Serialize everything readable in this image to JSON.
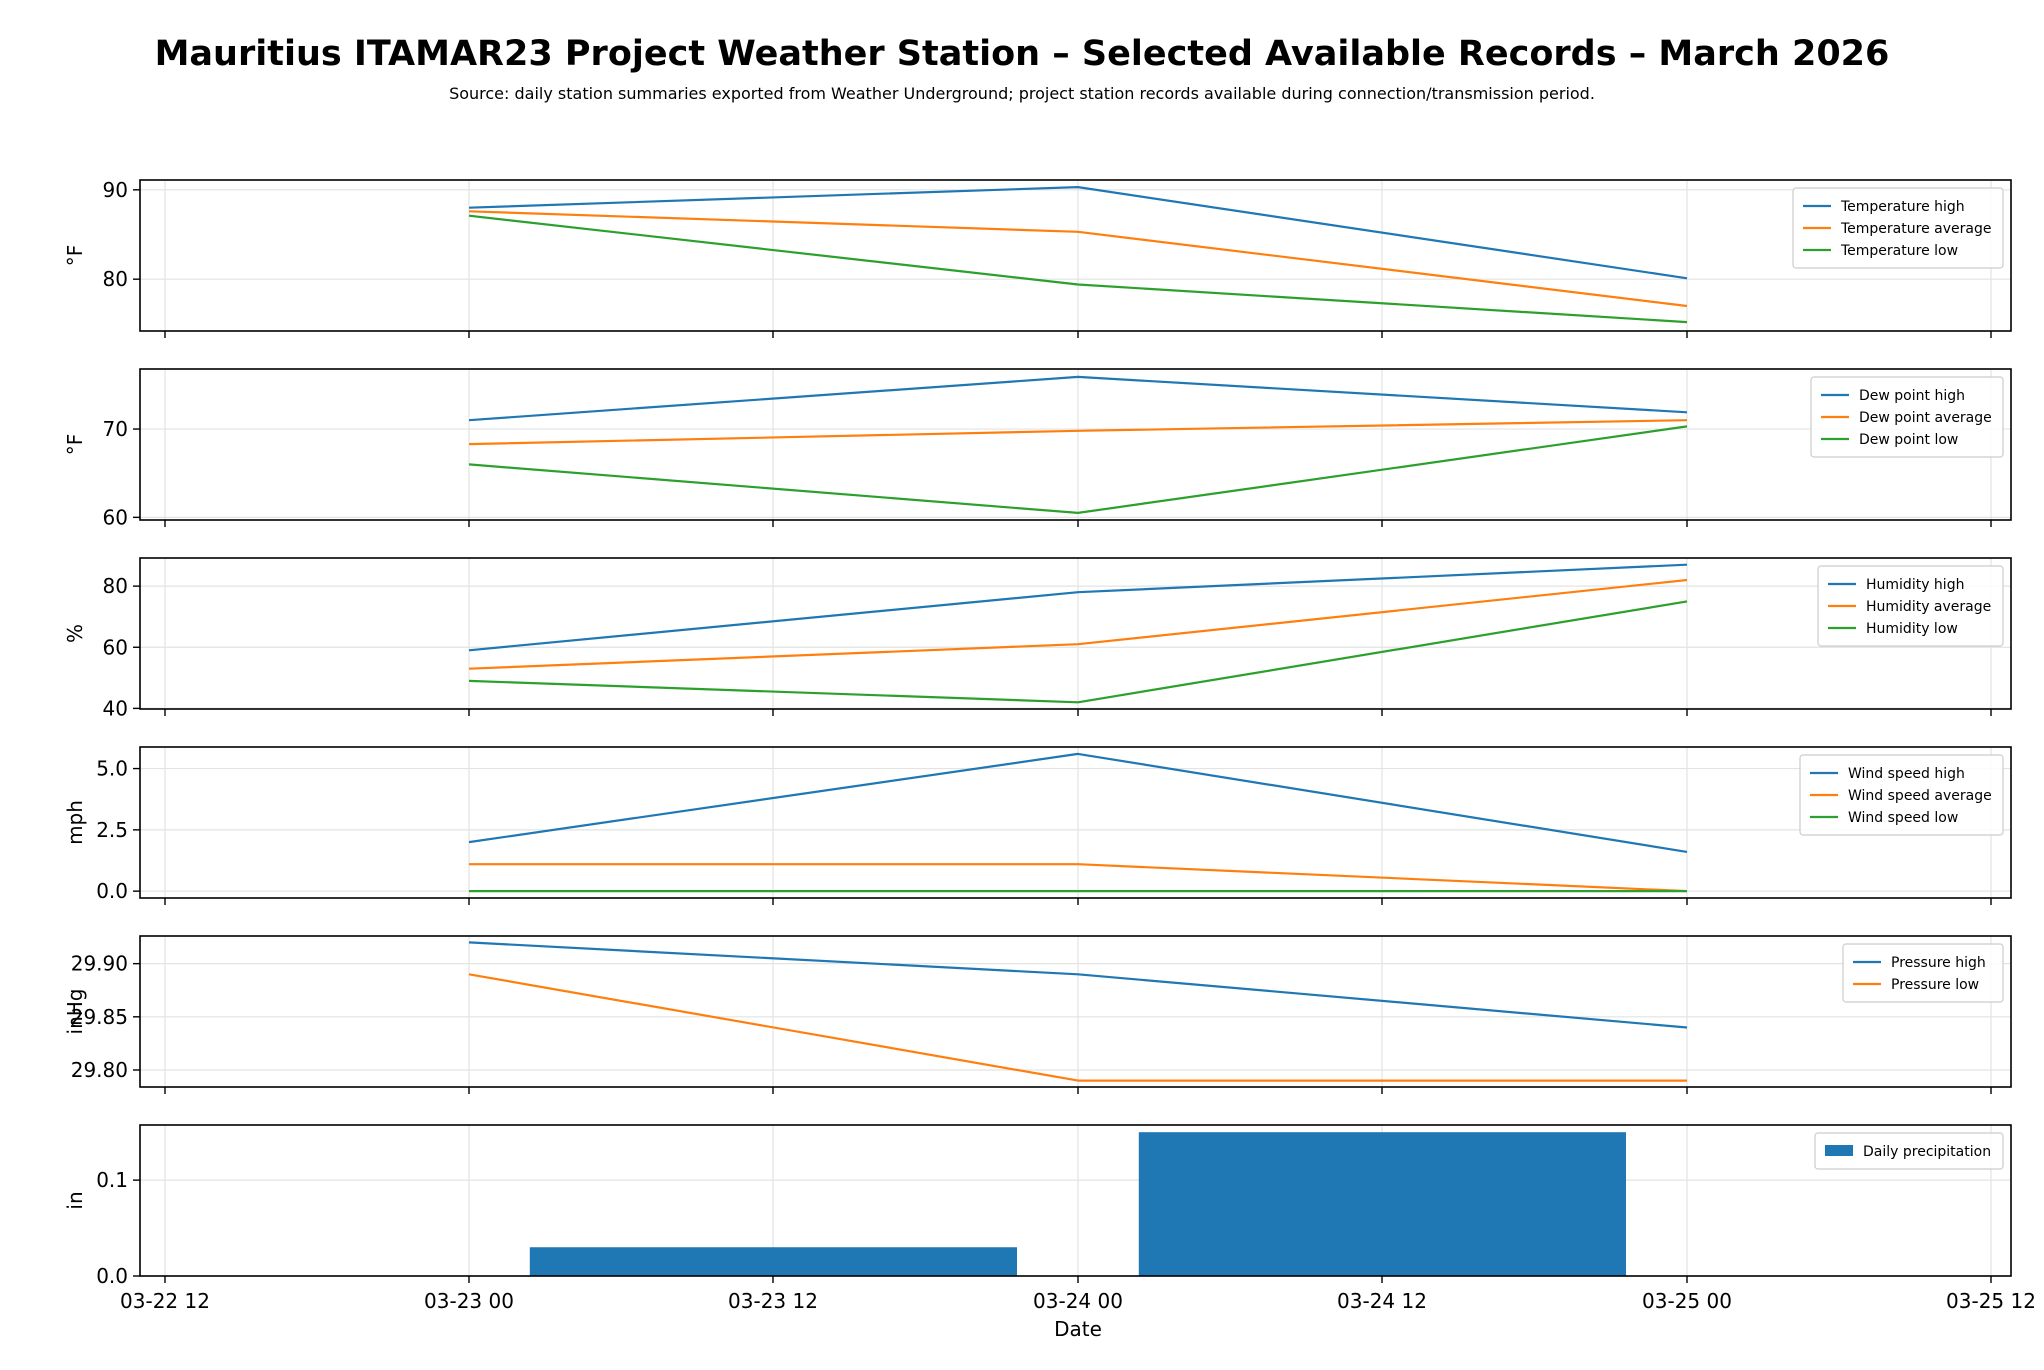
{
  "title": "Mauritius ITAMAR23 Project Weather Station – Selected Available Records – March 2026",
  "subtitle": "Source: daily station summaries exported from Weather Underground; project station records available during connection/transmission period.",
  "xlabel": "Date",
  "x_ticks": [
    "03-22 12",
    "03-23 00",
    "03-23 12",
    "03-24 00",
    "03-24 12",
    "03-25 00",
    "03-25 12"
  ],
  "colors": {
    "blue": "#1f77b4",
    "orange": "#ff7f0e",
    "green": "#2ca02c"
  },
  "chart_data": [
    {
      "type": "line",
      "ylabel": "°F",
      "x": [
        "2026-03-23",
        "2026-03-24",
        "2026-03-25"
      ],
      "xlim": [
        "2026-03-22 12:00",
        "2026-03-25 12:00"
      ],
      "ylim": [
        74.2,
        91.1
      ],
      "yticks": [
        80,
        90
      ],
      "grid": true,
      "legend": "top-right",
      "series": [
        {
          "name": "Temperature high",
          "color": "#1f77b4",
          "values": [
            88.0,
            90.3,
            80.1
          ]
        },
        {
          "name": "Temperature average",
          "color": "#ff7f0e",
          "values": [
            87.6,
            85.3,
            77.0
          ]
        },
        {
          "name": "Temperature low",
          "color": "#2ca02c",
          "values": [
            87.1,
            79.4,
            75.2
          ]
        }
      ]
    },
    {
      "type": "line",
      "ylabel": "°F",
      "x": [
        "2026-03-23",
        "2026-03-24",
        "2026-03-25"
      ],
      "xlim": [
        "2026-03-22 12:00",
        "2026-03-25 12:00"
      ],
      "ylim": [
        59.7,
        76.8
      ],
      "yticks": [
        60,
        70
      ],
      "grid": true,
      "legend": "top-right",
      "series": [
        {
          "name": "Dew point high",
          "color": "#1f77b4",
          "values": [
            71.0,
            75.9,
            71.9
          ]
        },
        {
          "name": "Dew point average",
          "color": "#ff7f0e",
          "values": [
            68.3,
            69.8,
            71.0
          ]
        },
        {
          "name": "Dew point low",
          "color": "#2ca02c",
          "values": [
            66.0,
            60.5,
            70.3
          ]
        }
      ]
    },
    {
      "type": "line",
      "ylabel": "%",
      "x": [
        "2026-03-23",
        "2026-03-24",
        "2026-03-25"
      ],
      "xlim": [
        "2026-03-22 12:00",
        "2026-03-25 12:00"
      ],
      "ylim": [
        39.8,
        89.2
      ],
      "yticks": [
        40,
        60,
        80
      ],
      "grid": true,
      "legend": "top-right",
      "series": [
        {
          "name": "Humidity high",
          "color": "#1f77b4",
          "values": [
            59,
            78,
            87
          ]
        },
        {
          "name": "Humidity average",
          "color": "#ff7f0e",
          "values": [
            53,
            61,
            82
          ]
        },
        {
          "name": "Humidity low",
          "color": "#2ca02c",
          "values": [
            49,
            42,
            75
          ]
        }
      ]
    },
    {
      "type": "line",
      "ylabel": "mph",
      "x": [
        "2026-03-23",
        "2026-03-24",
        "2026-03-25"
      ],
      "xlim": [
        "2026-03-22 12:00",
        "2026-03-25 12:00"
      ],
      "ylim": [
        -0.28,
        5.88
      ],
      "yticks": [
        0.0,
        2.5,
        5.0
      ],
      "yticklabels": [
        "0.0",
        "2.5",
        "5.0"
      ],
      "grid": true,
      "legend": "top-right",
      "series": [
        {
          "name": "Wind speed high",
          "color": "#1f77b4",
          "values": [
            2.0,
            5.6,
            1.6
          ]
        },
        {
          "name": "Wind speed average",
          "color": "#ff7f0e",
          "values": [
            1.1,
            1.1,
            0.0
          ]
        },
        {
          "name": "Wind speed low",
          "color": "#2ca02c",
          "values": [
            0.0,
            0.0,
            0.0
          ]
        }
      ]
    },
    {
      "type": "line",
      "ylabel": "inHg",
      "x": [
        "2026-03-23",
        "2026-03-24",
        "2026-03-25"
      ],
      "xlim": [
        "2026-03-22 12:00",
        "2026-03-25 12:00"
      ],
      "ylim": [
        29.784,
        29.926
      ],
      "yticks": [
        29.8,
        29.85,
        29.9
      ],
      "yticklabels": [
        "29.80",
        "29.85",
        "29.90"
      ],
      "grid": true,
      "legend": "top-right",
      "series": [
        {
          "name": "Pressure high",
          "color": "#1f77b4",
          "values": [
            29.92,
            29.89,
            29.84
          ]
        },
        {
          "name": "Pressure low",
          "color": "#ff7f0e",
          "values": [
            29.89,
            29.79,
            29.79
          ]
        }
      ]
    },
    {
      "type": "bar",
      "ylabel": "in",
      "x": [
        "2026-03-23",
        "2026-03-24"
      ],
      "bar_width_days": 0.8,
      "xlim": [
        "2026-03-22 12:00",
        "2026-03-25 12:00"
      ],
      "ylim": [
        0,
        0.1575
      ],
      "yticks": [
        0.0,
        0.1
      ],
      "yticklabels": [
        "0.0",
        "0.1"
      ],
      "grid": true,
      "legend": "top-right",
      "series": [
        {
          "name": "Daily precipitation",
          "color": "#1f77b4",
          "values": [
            0.03,
            0.15
          ]
        }
      ]
    }
  ]
}
